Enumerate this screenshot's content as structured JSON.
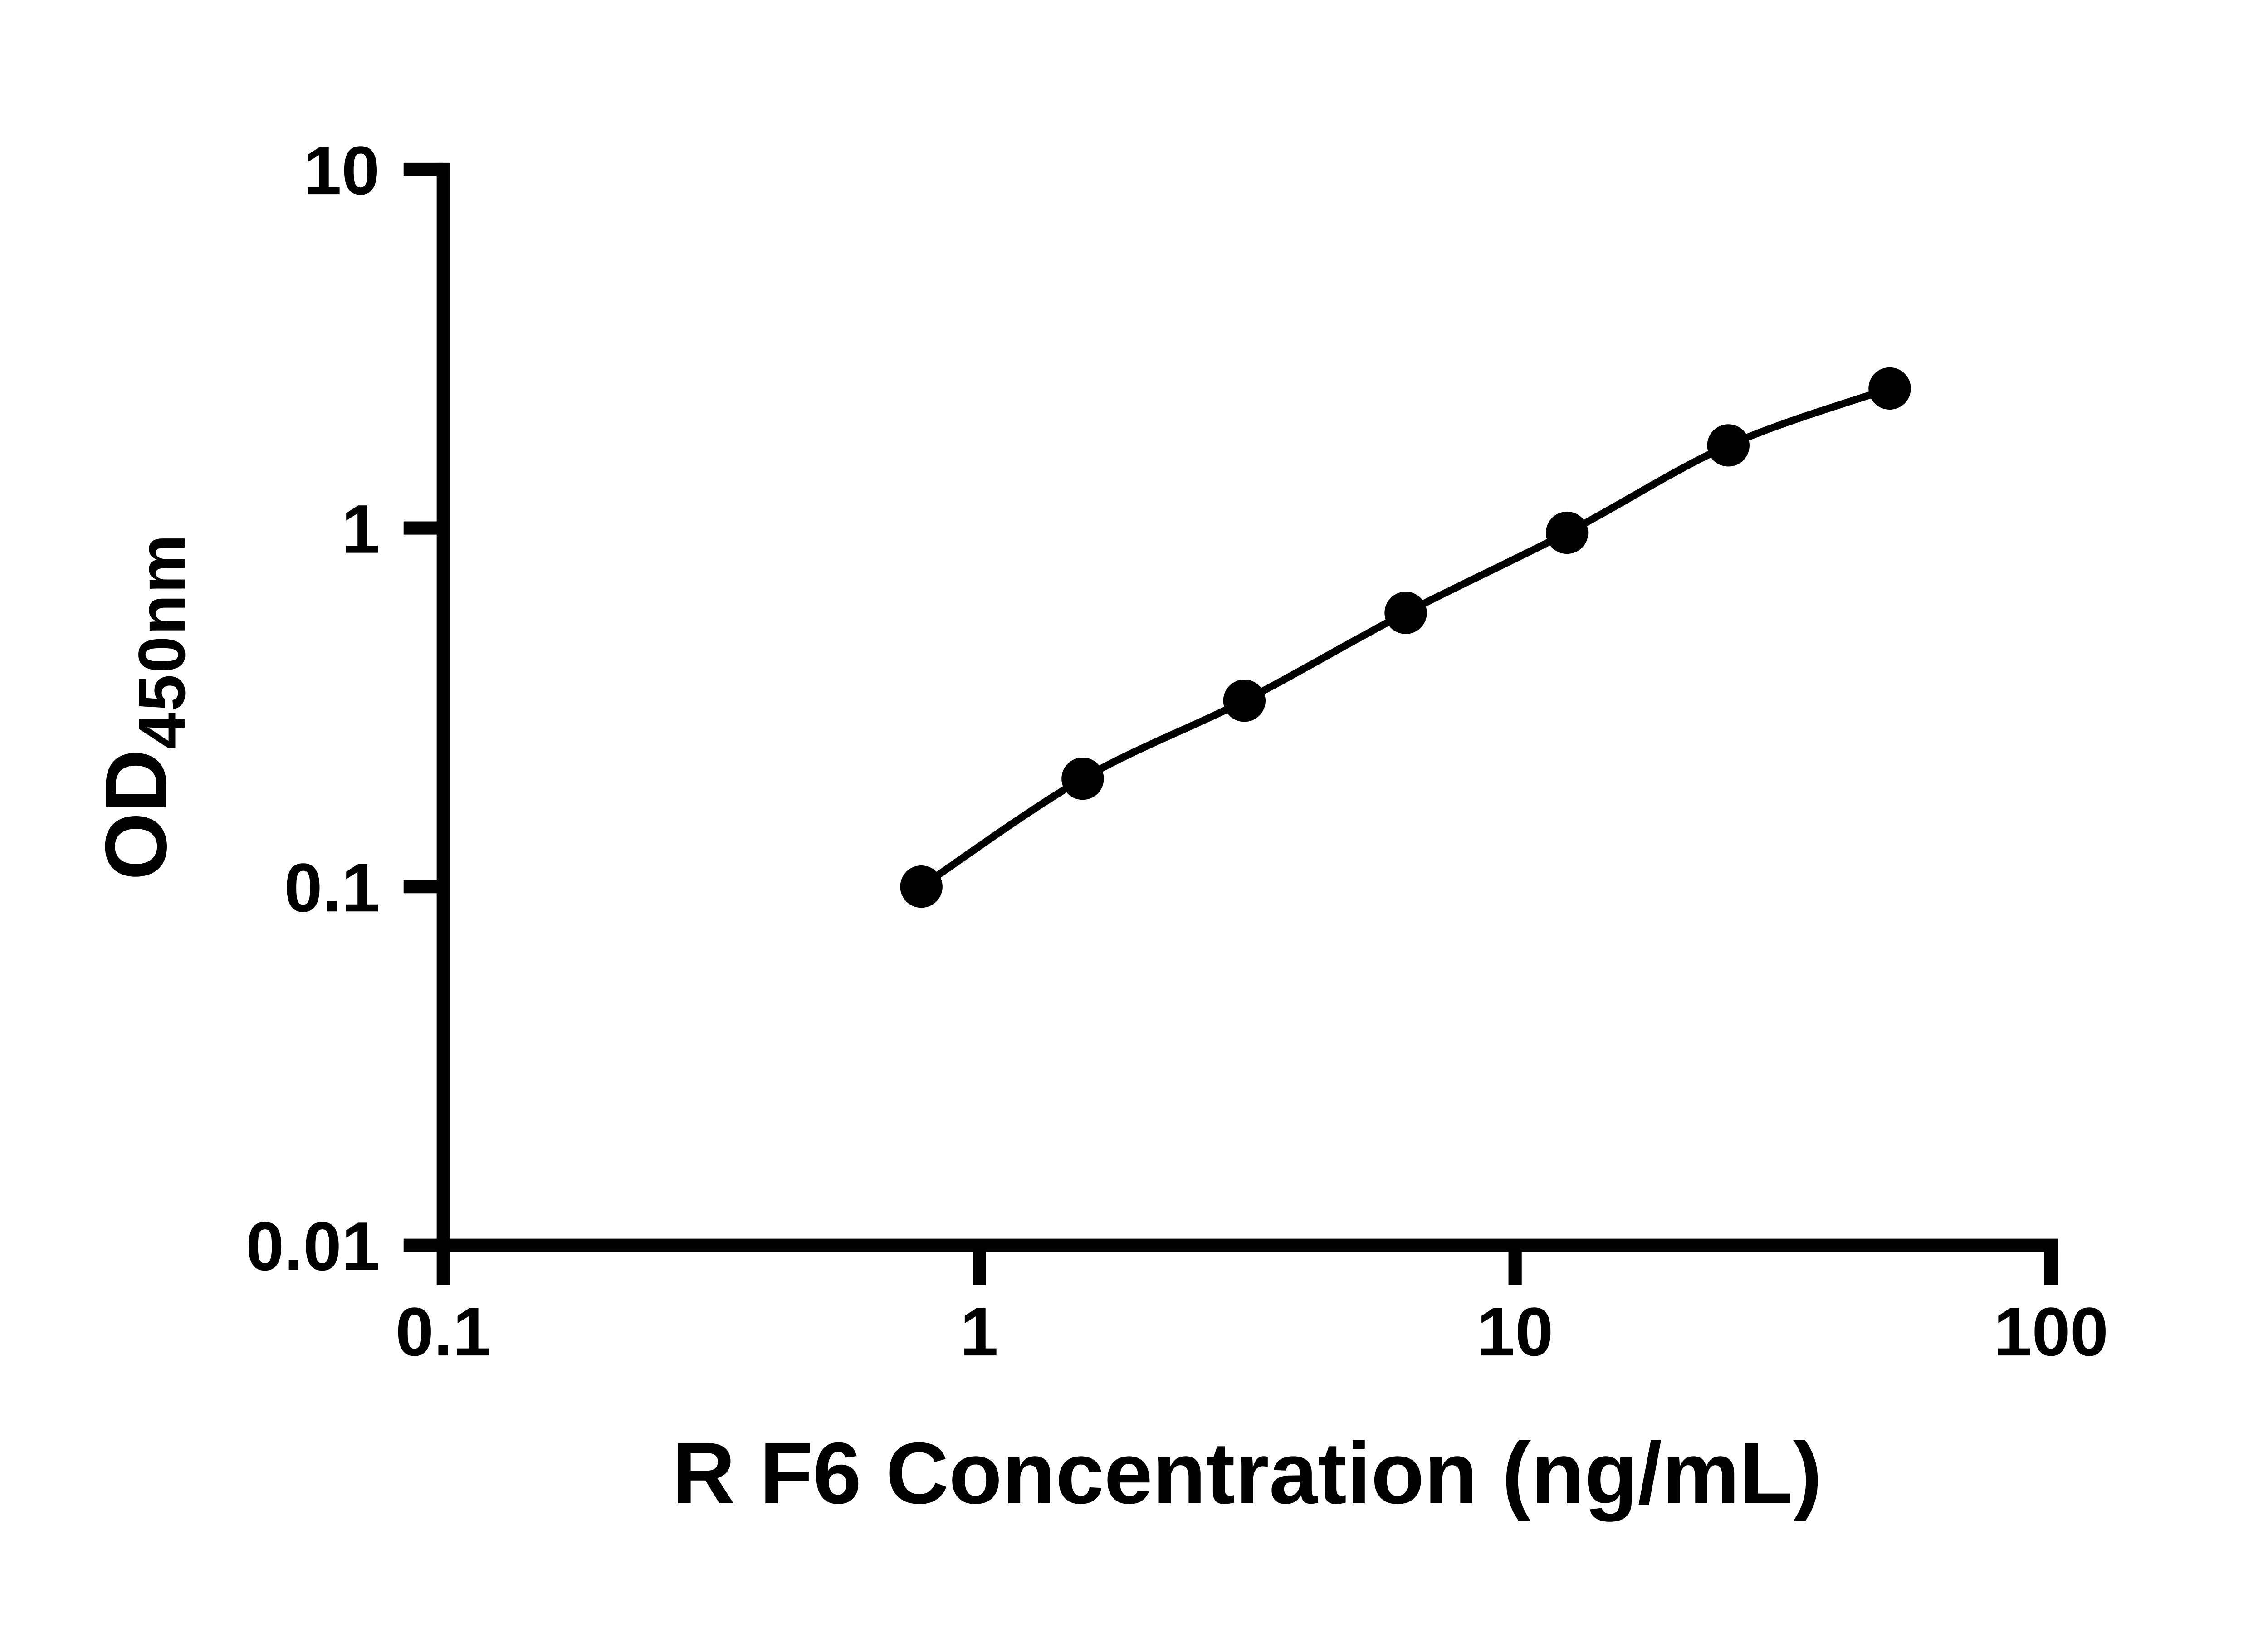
{
  "page": {
    "background": "#ffffff"
  },
  "colors": {
    "axis": "#000000",
    "curve": "#000000",
    "marker": "#000000",
    "tick_label": "#000000"
  },
  "chart_data": {
    "type": "line",
    "title": "",
    "xlabel": "R F6 Concentration (ng/mL)",
    "ylabel": "OD",
    "ylabel_sub": "450nm",
    "x_scale": "log",
    "y_scale": "log",
    "xlim": [
      0.1,
      100
    ],
    "ylim": [
      0.01,
      10
    ],
    "grid": false,
    "legend": "none",
    "x_ticks": [
      {
        "value": 0.1,
        "label": "0.1"
      },
      {
        "value": 1,
        "label": "1"
      },
      {
        "value": 10,
        "label": "10"
      },
      {
        "value": 100,
        "label": "100"
      }
    ],
    "y_ticks": [
      {
        "value": 0.01,
        "label": "0.01"
      },
      {
        "value": 0.1,
        "label": "0.1"
      },
      {
        "value": 1,
        "label": "1"
      },
      {
        "value": 10,
        "label": "10"
      }
    ],
    "series": [
      {
        "marker": "circle",
        "color": "#000000",
        "x": [
          0.78,
          1.56,
          3.125,
          6.25,
          12.5,
          25,
          50
        ],
        "y": [
          0.1,
          0.2,
          0.33,
          0.58,
          0.97,
          1.7,
          2.45
        ]
      }
    ]
  }
}
